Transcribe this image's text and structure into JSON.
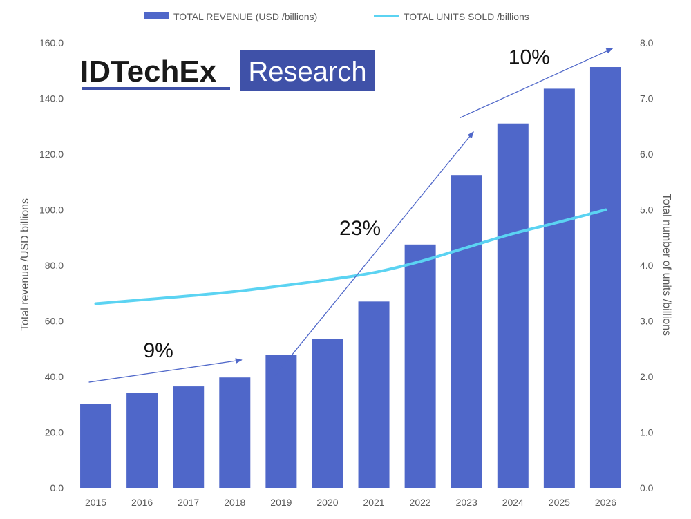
{
  "chart_data": {
    "type": "bar",
    "categories": [
      "2015",
      "2016",
      "2017",
      "2018",
      "2019",
      "2020",
      "2021",
      "2022",
      "2023",
      "2024",
      "2025",
      "2026"
    ],
    "series": [
      {
        "name": "TOTAL REVENUE (USD /billions)",
        "kind": "bar",
        "axis": "left",
        "color": "#4f67c9",
        "values": [
          30.1,
          34.2,
          36.5,
          39.7,
          47.8,
          53.6,
          67.0,
          87.5,
          112.5,
          131.0,
          143.5,
          151.3
        ]
      },
      {
        "name": "TOTAL UNITS SOLD /billions",
        "kind": "line",
        "axis": "right",
        "color": "#5bd3f2",
        "values": [
          3.31,
          3.38,
          3.45,
          3.53,
          3.63,
          3.74,
          3.87,
          4.07,
          4.32,
          4.57,
          4.78,
          5.0
        ]
      }
    ],
    "y_left": {
      "label": "Total revenue /USD billions",
      "min": 0,
      "max": 160,
      "ticks": [
        "0.0",
        "20.0",
        "40.0",
        "60.0",
        "80.0",
        "100.0",
        "120.0",
        "140.0",
        "160.0"
      ]
    },
    "y_right": {
      "label": "Total number of units /billions",
      "min": 0,
      "max": 8,
      "ticks": [
        "0.0",
        "1.0",
        "2.0",
        "3.0",
        "4.0",
        "5.0",
        "6.0",
        "7.0",
        "8.0"
      ]
    },
    "grid": false,
    "legend": "top-center",
    "annotations": [
      {
        "text": "9%",
        "from": [
          "2015",
          38
        ],
        "to": [
          "2018",
          46
        ]
      },
      {
        "text": "23%",
        "from": [
          "2019",
          40
        ],
        "to": [
          "2023",
          128
        ]
      },
      {
        "text": "10%",
        "from": [
          "2023",
          133
        ],
        "to": [
          "2026",
          158
        ]
      }
    ],
    "annotation_color": "#4f67c9"
  },
  "logo": {
    "name": "IDTechEx",
    "badge": "Research",
    "badge_color": "#3f51a8"
  }
}
